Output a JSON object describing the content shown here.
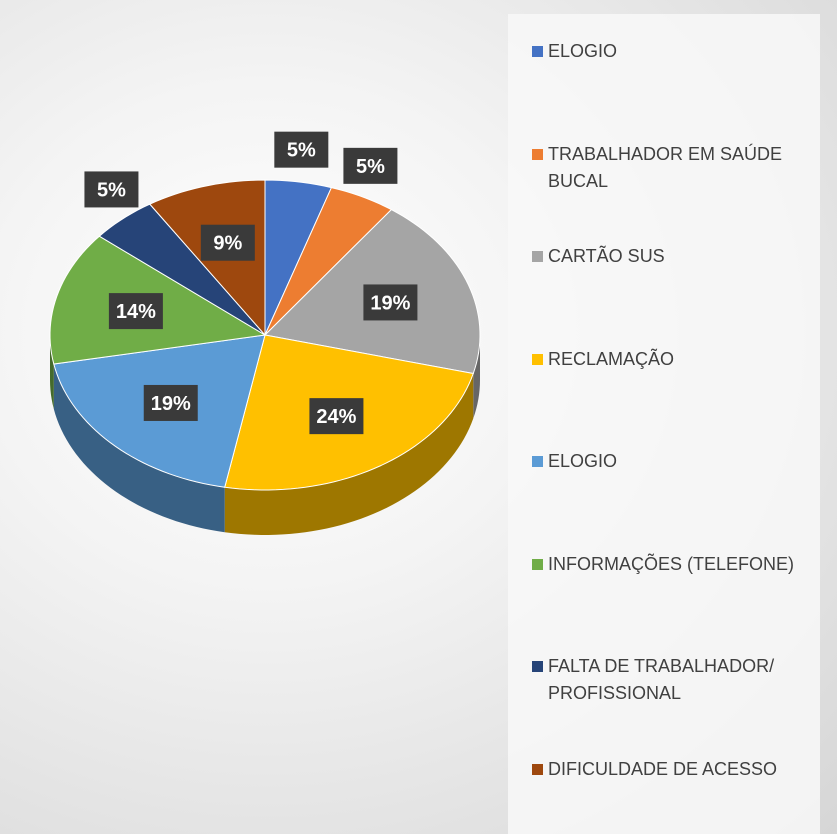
{
  "chart_data": {
    "type": "pie",
    "categories": [
      "ELOGIO",
      "TRABALHADOR EM SAÚDE BUCAL",
      "CARTÃO SUS",
      "RECLAMAÇÃO",
      "ELOGIO",
      "INFORMAÇÕES (TELEFONE)",
      "FALTA DE TRABALHADOR/ PROFISSIONAL",
      "DIFICULDADE DE ACESSO"
    ],
    "values": [
      5,
      5,
      19,
      24,
      19,
      14,
      5,
      9
    ],
    "value_labels": [
      "5%",
      "5%",
      "19%",
      "24%",
      "19%",
      "14%",
      "5%",
      "9%"
    ],
    "colors": [
      "#4472c4",
      "#ed7d31",
      "#a5a5a5",
      "#ffc000",
      "#5b9bd5",
      "#70ad47",
      "#264478",
      "#9e480e"
    ],
    "legend": "right"
  }
}
